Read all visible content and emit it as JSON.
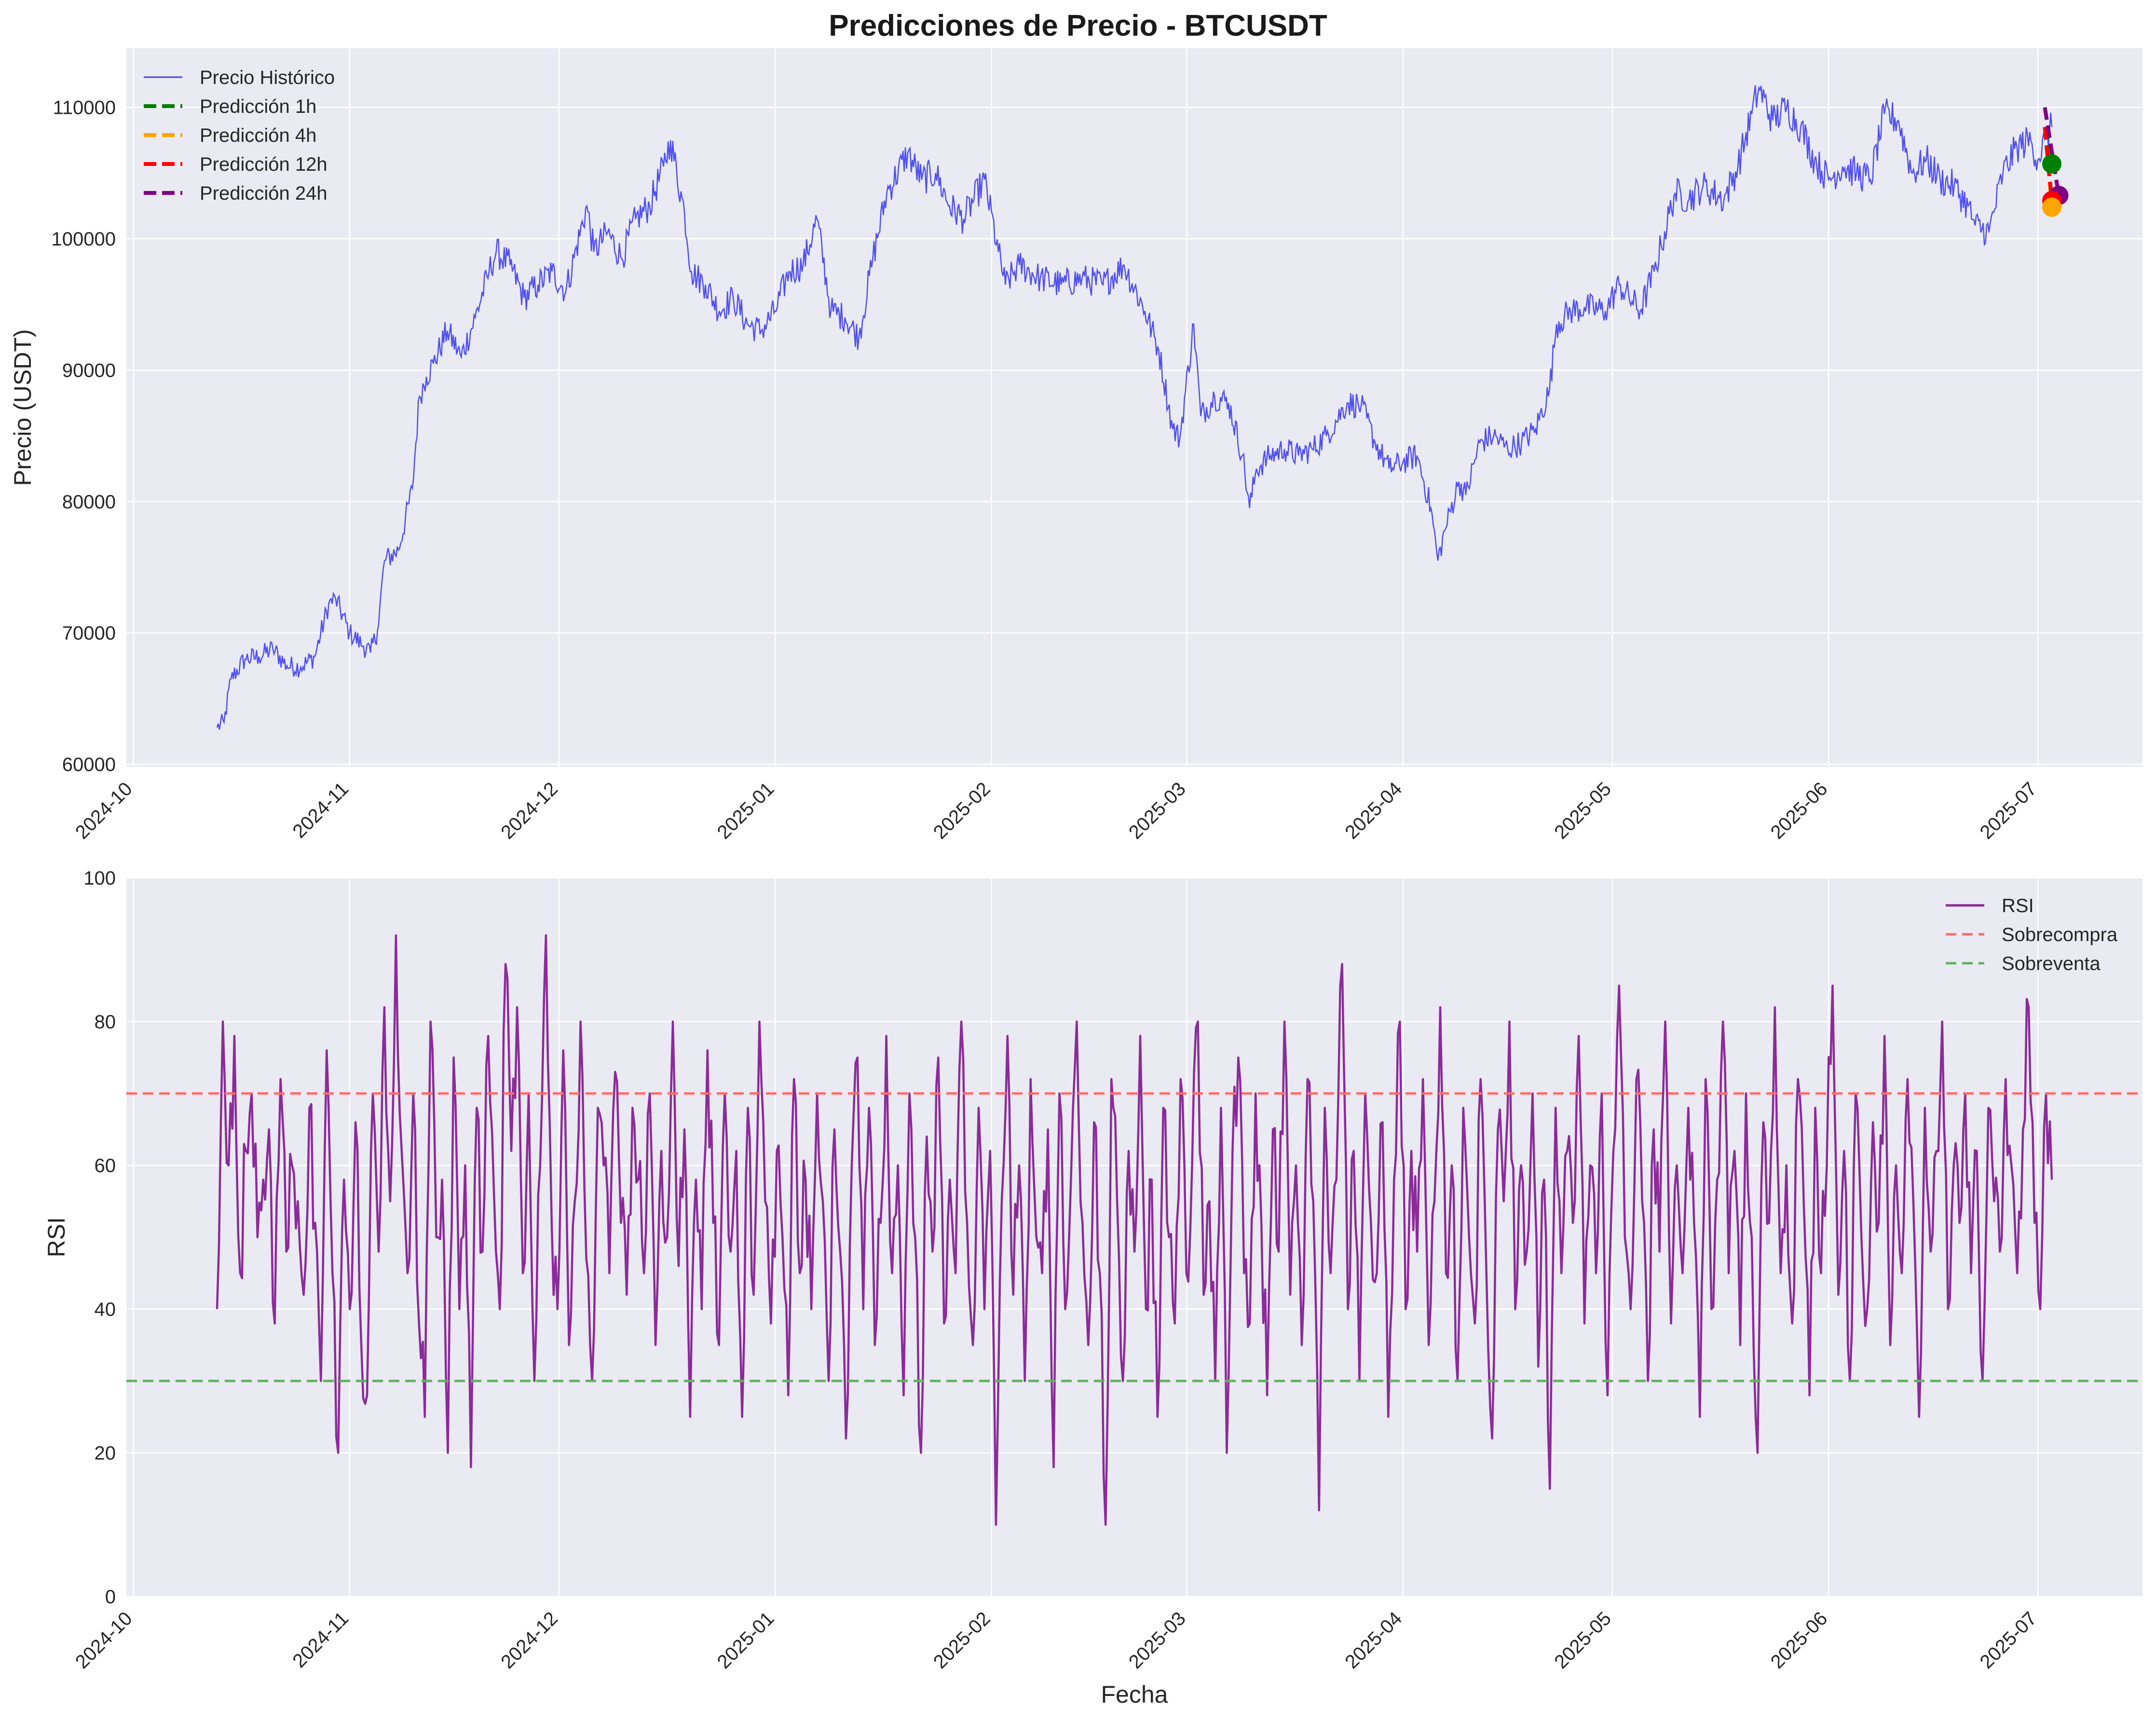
{
  "title": "Predicciones de Precio - BTCUSDT",
  "colors": {
    "axes_bg": "#eaeaf2",
    "grid": "#ffffff",
    "price": "#4040f0",
    "rsi": "#8b2b9a",
    "overbought": "#ff6b6b",
    "oversold": "#62b062",
    "pred_1h": "#008000",
    "pred_4h": "#ffa500",
    "pred_12h": "#ff0000",
    "pred_24h": "#800080"
  },
  "x_ticks": [
    "2024-10",
    "2024-11",
    "2024-12",
    "2025-01",
    "2025-02",
    "2025-03",
    "2025-04",
    "2025-05",
    "2025-06",
    "2025-07"
  ],
  "chart_data": [
    {
      "type": "line",
      "title": "Predicciones de Precio - BTCUSDT",
      "xlabel": "",
      "ylabel": "Precio (USDT)",
      "xlim": [
        "2024-09-30",
        "2025-07-16"
      ],
      "ylim": [
        59800,
        114500
      ],
      "y_ticks": [
        60000,
        70000,
        80000,
        90000,
        100000,
        110000
      ],
      "grid": true,
      "legend_position": "top-left",
      "series": [
        {
          "name": "Precio Histórico",
          "style": "line",
          "x": [
            "2024-10-13",
            "2024-10-14",
            "2024-10-15",
            "2024-10-17",
            "2024-10-19",
            "2024-10-21",
            "2024-10-23",
            "2024-10-25",
            "2024-10-27",
            "2024-10-29",
            "2024-10-30",
            "2024-11-01",
            "2024-11-03",
            "2024-11-04",
            "2024-11-05",
            "2024-11-06",
            "2024-11-08",
            "2024-11-10",
            "2024-11-11",
            "2024-11-12",
            "2024-11-13",
            "2024-11-15",
            "2024-11-17",
            "2024-11-19",
            "2024-11-21",
            "2024-11-22",
            "2024-11-24",
            "2024-11-26",
            "2024-11-28",
            "2024-11-30",
            "2024-12-02",
            "2024-12-05",
            "2024-12-06",
            "2024-12-08",
            "2024-12-10",
            "2024-12-12",
            "2024-12-14",
            "2024-12-16",
            "2024-12-17",
            "2024-12-19",
            "2024-12-20",
            "2024-12-22",
            "2024-12-24",
            "2024-12-26",
            "2024-12-28",
            "2024-12-30",
            "2025-01-01",
            "2025-01-03",
            "2025-01-05",
            "2025-01-07",
            "2025-01-09",
            "2025-01-11",
            "2025-01-13",
            "2025-01-15",
            "2025-01-17",
            "2025-01-20",
            "2025-01-22",
            "2025-01-24",
            "2025-01-26",
            "2025-01-28",
            "2025-01-31",
            "2025-02-02",
            "2025-02-03",
            "2025-02-05",
            "2025-02-08",
            "2025-02-11",
            "2025-02-14",
            "2025-02-17",
            "2025-02-20",
            "2025-02-23",
            "2025-02-25",
            "2025-02-27",
            "2025-02-28",
            "2025-03-02",
            "2025-03-03",
            "2025-03-05",
            "2025-03-07",
            "2025-03-09",
            "2025-03-10",
            "2025-03-11",
            "2025-03-13",
            "2025-03-15",
            "2025-03-17",
            "2025-03-19",
            "2025-03-21",
            "2025-03-24",
            "2025-03-26",
            "2025-03-28",
            "2025-03-30",
            "2025-04-01",
            "2025-04-03",
            "2025-04-05",
            "2025-04-06",
            "2025-04-07",
            "2025-04-09",
            "2025-04-10",
            "2025-04-12",
            "2025-04-14",
            "2025-04-16",
            "2025-04-18",
            "2025-04-20",
            "2025-04-22",
            "2025-04-23",
            "2025-04-25",
            "2025-04-27",
            "2025-04-30",
            "2025-05-02",
            "2025-05-05",
            "2025-05-07",
            "2025-05-08",
            "2025-05-10",
            "2025-05-12",
            "2025-05-14",
            "2025-05-17",
            "2025-05-19",
            "2025-05-21",
            "2025-05-22",
            "2025-05-24",
            "2025-05-26",
            "2025-05-28",
            "2025-05-30",
            "2025-06-01",
            "2025-06-03",
            "2025-06-05",
            "2025-06-07",
            "2025-06-09",
            "2025-06-11",
            "2025-06-13",
            "2025-06-15",
            "2025-06-17",
            "2025-06-19",
            "2025-06-21",
            "2025-06-22",
            "2025-06-24",
            "2025-06-26",
            "2025-06-28",
            "2025-06-30",
            "2025-07-01",
            "2025-07-02",
            "2025-07-03"
          ],
          "values": [
            62800,
            63200,
            66500,
            68000,
            68200,
            68800,
            67500,
            67400,
            68200,
            72200,
            72600,
            70000,
            69000,
            68500,
            70200,
            75500,
            76300,
            81000,
            88000,
            89500,
            90500,
            93000,
            91000,
            94000,
            97500,
            99000,
            98000,
            95500,
            96500,
            97500,
            96000,
            102500,
            99000,
            100500,
            98500,
            101500,
            102500,
            105500,
            107500,
            102000,
            97500,
            96500,
            94500,
            95500,
            93500,
            93000,
            94500,
            97500,
            98000,
            101500,
            94500,
            94000,
            92500,
            98500,
            103500,
            106500,
            104500,
            105000,
            102500,
            101500,
            104500,
            99000,
            96500,
            98000,
            97000,
            96500,
            97000,
            96500,
            98000,
            94500,
            91500,
            85500,
            84800,
            93500,
            86500,
            88000,
            87500,
            83500,
            79500,
            82500,
            83500,
            84000,
            83500,
            84000,
            85000,
            87500,
            87300,
            84500,
            82500,
            83000,
            83500,
            79500,
            75500,
            77800,
            81500,
            80500,
            84500,
            85000,
            84000,
            84500,
            85500,
            88500,
            93500,
            94500,
            94800,
            94500,
            96500,
            94500,
            97500,
            99500,
            103500,
            103000,
            104000,
            103000,
            105500,
            109500,
            111500,
            109000,
            110000,
            108500,
            106000,
            104500,
            105500,
            105000,
            104500,
            109500,
            109000,
            105000,
            106000,
            104500,
            104000,
            102500,
            101000,
            100500,
            105000,
            107000,
            107500,
            106000,
            107500,
            108500
          ]
        },
        {
          "name": "Predicción 1h",
          "style": "dashed",
          "x": [
            "2025-07-02",
            "2025-07-03"
          ],
          "values": [
            108500,
            105700
          ],
          "marker": {
            "x": "2025-07-03",
            "y": 105700
          }
        },
        {
          "name": "Predicción 4h",
          "style": "dashed",
          "x": [
            "2025-07-02",
            "2025-07-03"
          ],
          "values": [
            108500,
            102400
          ],
          "marker": {
            "x": "2025-07-03",
            "y": 102400
          }
        },
        {
          "name": "Predicción 12h",
          "style": "dashed",
          "x": [
            "2025-07-02",
            "2025-07-03"
          ],
          "values": [
            108500,
            102900
          ],
          "marker": {
            "x": "2025-07-03",
            "y": 102900
          }
        },
        {
          "name": "Predicción 24h",
          "style": "dashed",
          "x": [
            "2025-07-02",
            "2025-07-04"
          ],
          "values": [
            110000,
            103300
          ],
          "marker": {
            "x": "2025-07-04",
            "y": 103300
          }
        }
      ]
    },
    {
      "type": "line",
      "title": "",
      "xlabel": "Fecha",
      "ylabel": "RSI",
      "xlim": [
        "2024-09-30",
        "2025-07-16"
      ],
      "ylim": [
        0,
        100
      ],
      "y_ticks": [
        0,
        20,
        40,
        60,
        80,
        100
      ],
      "grid": true,
      "legend_position": "top-right",
      "series": [
        {
          "name": "RSI",
          "style": "line",
          "x_start": "2024-10-13",
          "x_end": "2025-07-03",
          "values": [
            40,
            80,
            60,
            78,
            45,
            62,
            70,
            50,
            58,
            65,
            38,
            72,
            48,
            60,
            55,
            42,
            68,
            52,
            30,
            76,
            45,
            20,
            58,
            40,
            66,
            35,
            28,
            70,
            48,
            82,
            55,
            92,
            62,
            45,
            70,
            38,
            25,
            80,
            50,
            58,
            20,
            75,
            40,
            60,
            18,
            68,
            48,
            78,
            56,
            40,
            88,
            62,
            82,
            45,
            70,
            30,
            60,
            92,
            52,
            40,
            76,
            35,
            55,
            80,
            47,
            30,
            68,
            60,
            45,
            73,
            52,
            42,
            68,
            58,
            45,
            70,
            35,
            62,
            50,
            80,
            46,
            65,
            25,
            58,
            40,
            76,
            52,
            35,
            70,
            48,
            62,
            25,
            68,
            42,
            80,
            55,
            38,
            62,
            50,
            28,
            72,
            45,
            58,
            40,
            70,
            55,
            30,
            65,
            48,
            22,
            60,
            75,
            40,
            68,
            35,
            52,
            78,
            45,
            60,
            28,
            70,
            50,
            20,
            64,
            48,
            75,
            38,
            58,
            45,
            80,
            52,
            35,
            68,
            40,
            62,
            10,
            55,
            78,
            42,
            60,
            30,
            72,
            50,
            45,
            65,
            18,
            70,
            40,
            58,
            80,
            52,
            35,
            66,
            45,
            10,
            72,
            55,
            30,
            62,
            48,
            78,
            40,
            58,
            25,
            68,
            50,
            38,
            72,
            45,
            60,
            80,
            42,
            55,
            30,
            68,
            20,
            62,
            75,
            45,
            38,
            70,
            52,
            28,
            65,
            48,
            80,
            42,
            60,
            35,
            72,
            55,
            12,
            68,
            45,
            58,
            88,
            40,
            62,
            30,
            70,
            52,
            45,
            66,
            25,
            58,
            80,
            40,
            62,
            48,
            72,
            35,
            55,
            82,
            45,
            60,
            30,
            68,
            50,
            38,
            72,
            45,
            22,
            65,
            55,
            80,
            40,
            60,
            48,
            70,
            32,
            58,
            15,
            68,
            45,
            62,
            52,
            78,
            38,
            60,
            45,
            70,
            28,
            62,
            85,
            50,
            40,
            72,
            55,
            30,
            65,
            48,
            80,
            38,
            60,
            45,
            68,
            52,
            25,
            72,
            40,
            58,
            80,
            45,
            62,
            35,
            70,
            50,
            20,
            66,
            52,
            82,
            45,
            60,
            38,
            72,
            55,
            28,
            68,
            45,
            60,
            85,
            42,
            62,
            30,
            70,
            50,
            40,
            66,
            52,
            78,
            35,
            60,
            45,
            72,
            55,
            25,
            68,
            48,
            62,
            80,
            40,
            60,
            52,
            70,
            45,
            62,
            30,
            68,
            55,
            48,
            72,
            60,
            45,
            65,
            82,
            52,
            40,
            70,
            58
          ]
        },
        {
          "name": "Sobrecompra",
          "style": "dashed",
          "value": 70
        },
        {
          "name": "Sobreventa",
          "style": "dashed",
          "value": 30
        }
      ]
    }
  ]
}
